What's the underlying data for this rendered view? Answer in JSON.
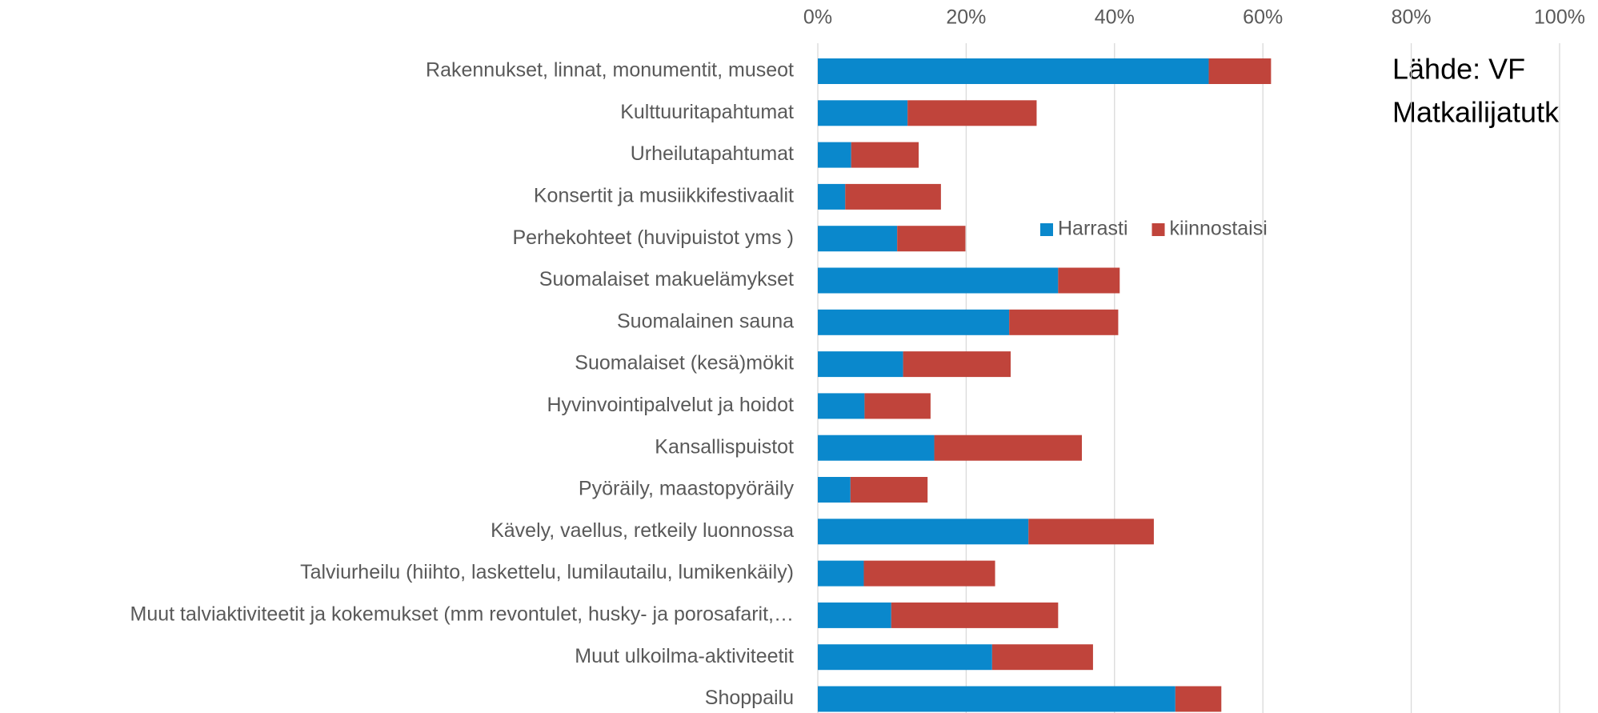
{
  "chart_data": {
    "type": "bar",
    "orientation": "horizontal",
    "stacked": true,
    "categories": [
      "Rakennukset, linnat, monumentit, museot",
      "Kulttuuritapahtumat",
      "Urheilutapahtumat",
      "Konsertit ja musiikkifestivaalit",
      "Perhekohteet (huvipuistot yms )",
      "Suomalaiset makuelämykset",
      "Suomalainen sauna",
      "Suomalaiset (kesä)mökit",
      "Hyvinvointipalvelut ja hoidot",
      "Kansallispuistot",
      "Pyöräily, maastopyöräily",
      "Kävely, vaellus, retkeily luonnossa",
      "Talviurheilu (hiihto, laskettelu, lumilautailu, lumikenkäily)",
      "Muut talviaktiviteetit ja kokemukset (mm  revontulet, husky- ja porosafarit,…",
      "Muut ulkoilma-aktiviteetit",
      "Shoppailu"
    ],
    "series": [
      {
        "name": "Harrasti",
        "color": "#0a88cc",
        "values": [
          52.7,
          12.1,
          4.5,
          3.7,
          10.7,
          32.4,
          25.8,
          11.5,
          6.3,
          15.7,
          4.4,
          28.4,
          6.2,
          9.9,
          23.5,
          48.2
        ]
      },
      {
        "name": "kiinnostaisi",
        "color": "#c0443b",
        "values": [
          8.4,
          17.4,
          9.1,
          12.9,
          9.2,
          8.3,
          14.7,
          14.5,
          8.9,
          19.9,
          10.4,
          16.9,
          17.7,
          22.5,
          13.6,
          6.2
        ]
      }
    ],
    "xlim": [
      0,
      100
    ],
    "xticks": [
      {
        "value": 0,
        "label": "0%"
      },
      {
        "value": 20,
        "label": "20%"
      },
      {
        "value": 40,
        "label": "40%"
      },
      {
        "value": 60,
        "label": "60%"
      },
      {
        "value": 80,
        "label": "80%"
      },
      {
        "value": 100,
        "label": "100%"
      }
    ],
    "grid": true,
    "legend": "center",
    "annotation": [
      "Lähde: VF",
      "Matkailijatutk"
    ]
  }
}
